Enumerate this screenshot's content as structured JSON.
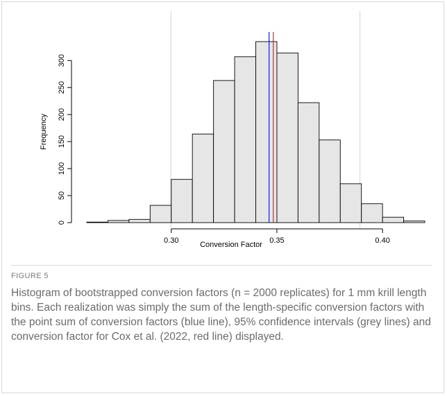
{
  "figure": {
    "label": "FIGURE 5",
    "caption": "Histogram of bootstrapped conversion factors (n = 2000 replicates) for 1 mm krill length bins. Each realization was simply the sum of the length-specific conversion factors with the point sum of conversion factors (blue line), 95% confidence intervals (grey lines) and conversion factor for Cox et al. (2022, red line) displayed."
  },
  "chart_data": {
    "type": "bar",
    "title": "",
    "xlabel": "Conversion Factor",
    "ylabel": "Frequency",
    "bin_width": 0.01,
    "bin_starts": [
      0.26,
      0.27,
      0.28,
      0.29,
      0.3,
      0.31,
      0.32,
      0.33,
      0.34,
      0.35,
      0.36,
      0.37,
      0.38,
      0.39,
      0.4,
      0.41
    ],
    "values": [
      1,
      4,
      6,
      32,
      80,
      164,
      263,
      307,
      335,
      314,
      222,
      153,
      72,
      35,
      10,
      3
    ],
    "xlim": [
      0.26,
      0.42
    ],
    "ylim": [
      0,
      335
    ],
    "x_ticks": [
      0.3,
      0.35,
      0.4
    ],
    "x_tick_labels": [
      "0.30",
      "0.35",
      "0.40"
    ],
    "y_ticks": [
      0,
      50,
      100,
      150,
      200,
      250,
      300
    ],
    "y_tick_labels": [
      "0",
      "50",
      "100",
      "150",
      "200",
      "250",
      "300"
    ],
    "bar_fill": "#e6e6e6",
    "bar_stroke": "#000000",
    "reference_lines": [
      {
        "x": 0.2998,
        "color": "#d3d3d3"
      },
      {
        "x": 0.3893,
        "color": "#d3d3d3"
      },
      {
        "x": 0.3463,
        "color": "#0000ff"
      },
      {
        "x": 0.3483,
        "color": "#ff0000"
      }
    ]
  }
}
